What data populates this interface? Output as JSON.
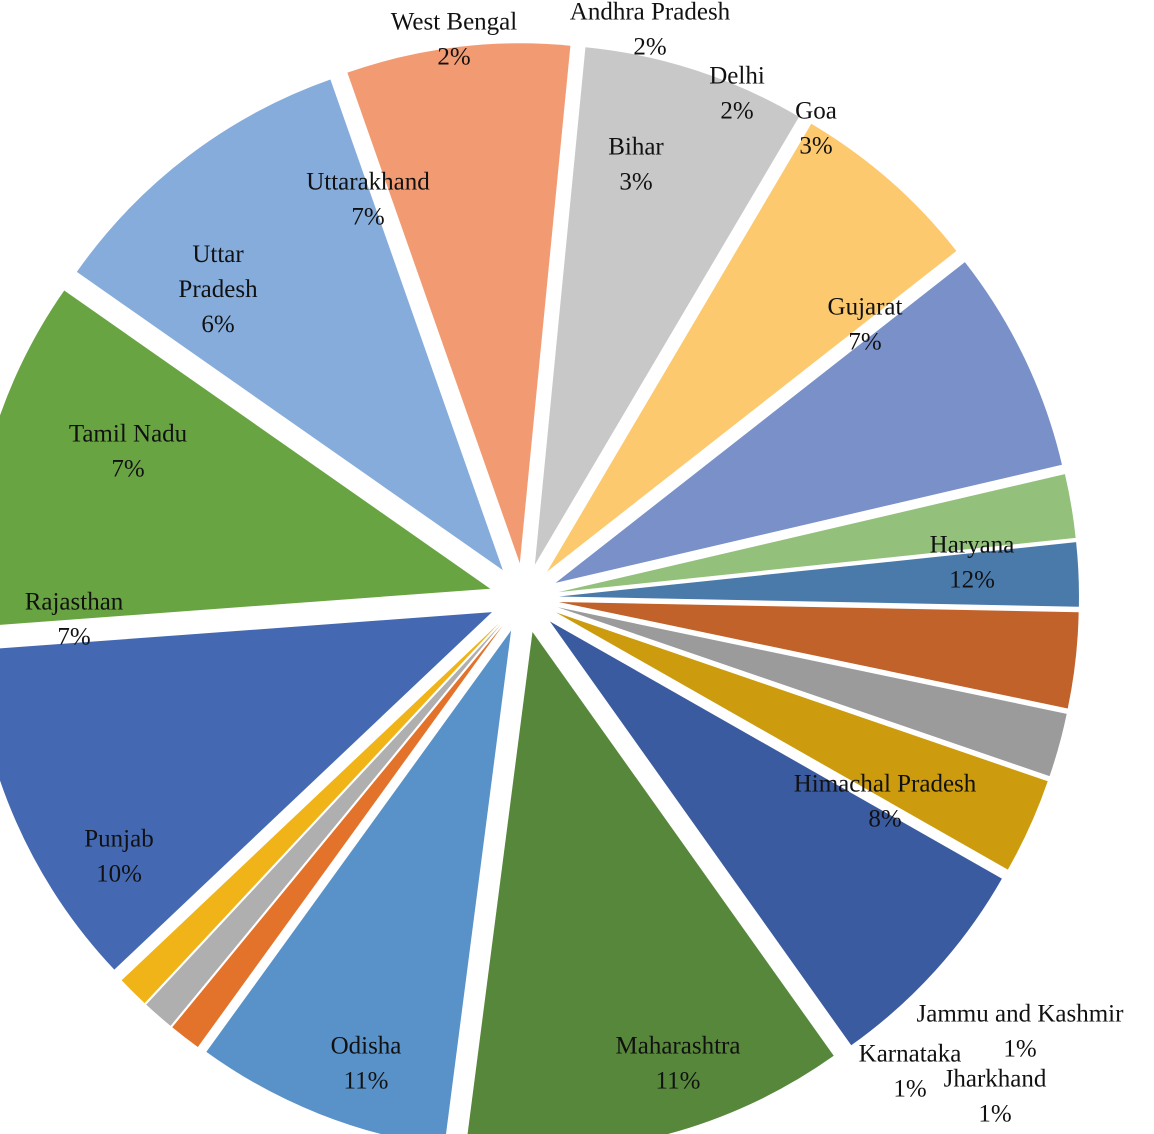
{
  "chart_data": {
    "type": "pie",
    "exploded": true,
    "title": "",
    "slices": [
      {
        "label": "Andhra Pradesh",
        "value": 2,
        "value_label": "2%",
        "color": "#4a7aaa"
      },
      {
        "label": "Bihar",
        "value": 3,
        "value_label": "3%",
        "color": "#c0622a"
      },
      {
        "label": "Delhi",
        "value": 2,
        "value_label": "2%",
        "color": "#9b9b9b"
      },
      {
        "label": "Goa",
        "value": 3,
        "value_label": "3%",
        "color": "#cc9c0e"
      },
      {
        "label": "Gujarat",
        "value": 7,
        "value_label": "7%",
        "color": "#3b5ba0"
      },
      {
        "label": "Haryana",
        "value": 12,
        "value_label": "12%",
        "color": "#57873a"
      },
      {
        "label": "Himachal Pradesh",
        "value": 8,
        "value_label": "8%",
        "color": "#5992c8"
      },
      {
        "label": "Jammu and Kashmir",
        "value": 1,
        "value_label": "1%",
        "color": "#e3722a"
      },
      {
        "label": "Jharkhand",
        "value": 1,
        "value_label": "1%",
        "color": "#afafaf"
      },
      {
        "label": "Karnataka",
        "value": 1,
        "value_label": "1%",
        "color": "#f0b418"
      },
      {
        "label": "Maharashtra",
        "value": 11,
        "value_label": "11%",
        "color": "#4469b2"
      },
      {
        "label": "Odisha",
        "value": 11,
        "value_label": "11%",
        "color": "#69a442"
      },
      {
        "label": "Punjab",
        "value": 10,
        "value_label": "10%",
        "color": "#85acdb"
      },
      {
        "label": "Rajasthan",
        "value": 7,
        "value_label": "7%",
        "color": "#f29b72"
      },
      {
        "label": "Tamil Nadu",
        "value": 7,
        "value_label": "7%",
        "color": "#c8c8c8"
      },
      {
        "label": "Uttar Pradesh",
        "value": 6,
        "value_label": "6%",
        "color": "#fcc96e"
      },
      {
        "label": "Uttarakhand",
        "value": 7,
        "value_label": "7%",
        "color": "#7990c9"
      },
      {
        "label": "West Bengal",
        "value": 2,
        "value_label": "2%",
        "color": "#93c17b"
      }
    ]
  }
}
